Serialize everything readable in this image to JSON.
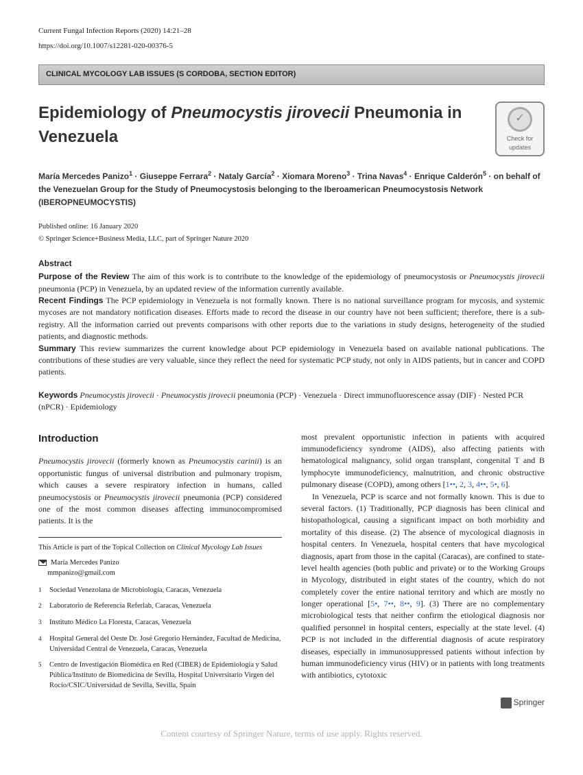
{
  "journal": {
    "name_and_cite": "Current Fungal Infection Reports (2020) 14:21–28",
    "doi": "https://doi.org/10.1007/s12281-020-00376-5"
  },
  "section_banner": "CLINICAL MYCOLOGY LAB ISSUES (S CORDOBA, SECTION EDITOR)",
  "title_plain": "Epidemiology of ",
  "title_italic": "Pneumocystis jirovecii",
  "title_tail": " Pneumonia in Venezuela",
  "update_badge": {
    "line1": "Check for",
    "line2": "updates"
  },
  "authors_html": "María Mercedes Panizo<sup>1</sup> · Giuseppe Ferrara<sup>2</sup> · Nataly García<sup>2</sup> · Xiomara Moreno<sup>3</sup> · Trina Navas<sup>4</sup> · Enrique Calderón<sup>5</sup> · on behalf of the Venezuelan Group for the Study of Pneumocystosis belonging to the Iberoamerican Pneumocystosis Network (IBEROPNEUMOCYSTIS)",
  "published_online": "Published online: 16 January 2020",
  "copyright": "© Springer Science+Business Media, LLC, part of Springer Nature 2020",
  "abstract": {
    "heading": "Abstract",
    "purpose_lead": "Purpose of the Review",
    "purpose_text": " The aim of this work is to contribute to the knowledge of the epidemiology of pneumocystosis or <em>Pneumocystis jirovecii</em> pneumonia (PCP) in Venezuela, by an updated review of the information currently available.",
    "findings_lead": "Recent Findings",
    "findings_text": " The PCP epidemiology in Venezuela is not formally known. There is no national surveillance program for mycosis, and systemic mycoses are not mandatory notification diseases. Efforts made to record the disease in our country have not been sufficient; therefore, there is a sub-registry. All the information carried out prevents comparisons with other reports due to the variations in study designs, heterogeneity of the studied patients, and diagnostic methods.",
    "summary_lead": "Summary",
    "summary_text": " This review summarizes the current knowledge about PCP epidemiology in Venezuela based on available national publications. The contributions of these studies are very valuable, since they reflect the need for systematic PCP study, not only in AIDS patients, but in cancer and COPD patients."
  },
  "keywords": {
    "lead": "Keywords",
    "text": " <em>Pneumocystis jirovecii</em> · <em>Pneumocystis jirovecii</em> pneumonia (PCP) · Venezuela · Direct immunofluorescence assay (DIF) · Nested PCR (nPCR) · Epidemiology"
  },
  "intro": {
    "heading": "Introduction",
    "p1": "<em>Pneumocystis jirovecii</em> (formerly known as <em>Pneumocystis carinii</em>) is an opportunistic fungus of universal distribution and pulmonary tropism, which causes a severe respiratory infection in humans, called pneumocystosis or <em>Pneumocystis jirovecii</em> pneumonia (PCP) considered one of the most common diseases affecting immunocompromised patients. It is the",
    "p1_cont": "most prevalent opportunistic infection in patients with acquired immunodeficiency syndrome (AIDS), also affecting patients with hematological malignancy, solid organ transplant, congenital T and B lymphocyte immunodeficiency, malnutrition, and chronic obstructive pulmonary disease (COPD), among others [<span class=\"ref-link\">1••</span>, <span class=\"ref-link\">2</span>, <span class=\"ref-link\">3</span>, <span class=\"ref-link\">4••</span>, <span class=\"ref-link\">5•</span>, <span class=\"ref-link\">6</span>].",
    "p2": "In Venezuela, PCP is scarce and not formally known. This is due to several factors. (1) Traditionally, PCP diagnosis has been clinical and histopathological, causing a significant impact on both morbidity and mortality of this disease. (2) The absence of mycological diagnosis in hospital centers. In Venezuela, hospital centers that have mycological diagnosis, apart from those in the capital (Caracas), are confined to state-level health agencies (both public and private) or to the Working Groups in Mycology, distributed in eight states of the country, which do not completely cover the entire national territory and which are mostly no longer operational [<span class=\"ref-link\">5•</span>, <span class=\"ref-link\">7••</span>, <span class=\"ref-link\">8••</span>, <span class=\"ref-link\">9</span>]. (3) There are no complementary microbiological tests that neither confirm the etiological diagnosis nor qualified personnel in hospital centers, especially at the state level. (4) PCP is not included in the differential diagnosis of acute respiratory diseases, especially in immunosuppressed patients without infection by human immunodeficiency virus (HIV) or in patients with long treatments with antibiotics, cytotoxic"
  },
  "footnotes": {
    "collection_note": "This Article is part of the Topical Collection on <em>Clinical Mycology Lab Issues</em>",
    "corresponding_name": "María Mercedes Panizo",
    "corresponding_email": "mmpanizo@gmail.com"
  },
  "affiliations": [
    {
      "n": "1",
      "text": "Sociedad Venezolana de Microbiología, Caracas, Venezuela"
    },
    {
      "n": "2",
      "text": "Laboratorio de Referencia Referlab, Caracas, Venezuela"
    },
    {
      "n": "3",
      "text": "Instituto Médico La Floresta, Caracas, Venezuela"
    },
    {
      "n": "4",
      "text": "Hospital General del Oeste Dr. José Gregorio Hernández, Facultad de Medicina, Universidad Central de Venezuela, Caracas, Venezuela"
    },
    {
      "n": "5",
      "text": "Centro de Investigación Biomédica en Red (CIBER) de Epidemiología y Salud Pública/Instituto de Biomedicina de Sevilla, Hospital Universitario Virgen del Rocío/CSIC/Universidad de Sevilla, Sevilla, Spain"
    }
  ],
  "publisher": "Springer",
  "courtesy": "Content courtesy of Springer Nature, terms of use apply. Rights reserved."
}
